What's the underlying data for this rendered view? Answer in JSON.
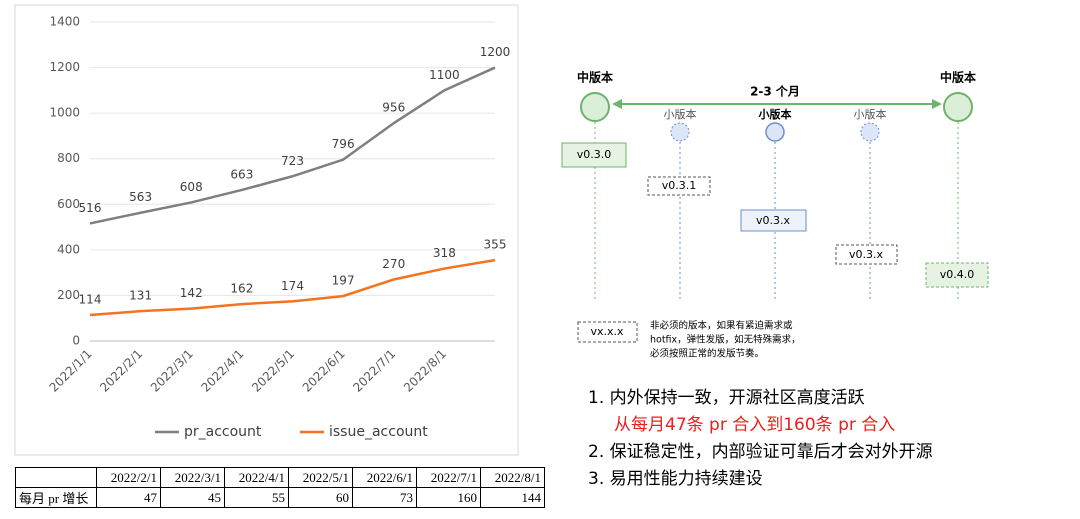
{
  "chart_data": {
    "type": "line",
    "categories": [
      "2022/1/1",
      "2022/2/1",
      "2022/3/1",
      "2022/4/1",
      "2022/5/1",
      "2022/6/1",
      "2022/7/1",
      "2022/8/1",
      null
    ],
    "series": [
      {
        "name": "pr_account",
        "color": "#7f7f7f",
        "values": [
          516,
          563,
          608,
          663,
          723,
          796,
          956,
          1100,
          1200
        ]
      },
      {
        "name": "issue_account",
        "color": "#f4731f",
        "values": [
          114,
          131,
          142,
          162,
          174,
          197,
          270,
          318,
          355
        ]
      }
    ],
    "ylim": [
      0,
      1400
    ],
    "yticks": [
      0,
      200,
      400,
      600,
      800,
      1000,
      1200,
      1400
    ],
    "grid": true,
    "legend": "bottom"
  },
  "table": {
    "header": [
      null,
      "2022/2/1",
      "2022/3/1",
      "2022/4/1",
      "2022/5/1",
      "2022/6/1",
      "2022/7/1",
      "2022/8/1"
    ],
    "rows": [
      [
        "每月 pr 增长",
        47,
        45,
        55,
        60,
        73,
        160,
        144
      ]
    ]
  },
  "diagram": {
    "major_left": "中版本",
    "major_right": "中版本",
    "span": "2-3 个月",
    "minor": [
      "小版本",
      "小版本",
      "小版本"
    ],
    "versions": [
      "v0.3.0",
      "v0.3.1",
      "v0.3.x",
      "v0.3.x",
      "v0.4.0"
    ],
    "legend_box": "vx.x.x",
    "legend_note": [
      "非必须的版本，如果有紧迫需求或",
      "hotfix，弹性发版，如无特殊需求，",
      "必须按照正常的发版节奏。"
    ]
  },
  "list": [
    "1.  内外保持一致，开源社区高度活跃",
    "从每月47条  pr  合入到160条  pr  合入",
    "2.  保证稳定性，内部验证可靠后才会对外开源",
    "3.  易用性能力持续建设"
  ]
}
